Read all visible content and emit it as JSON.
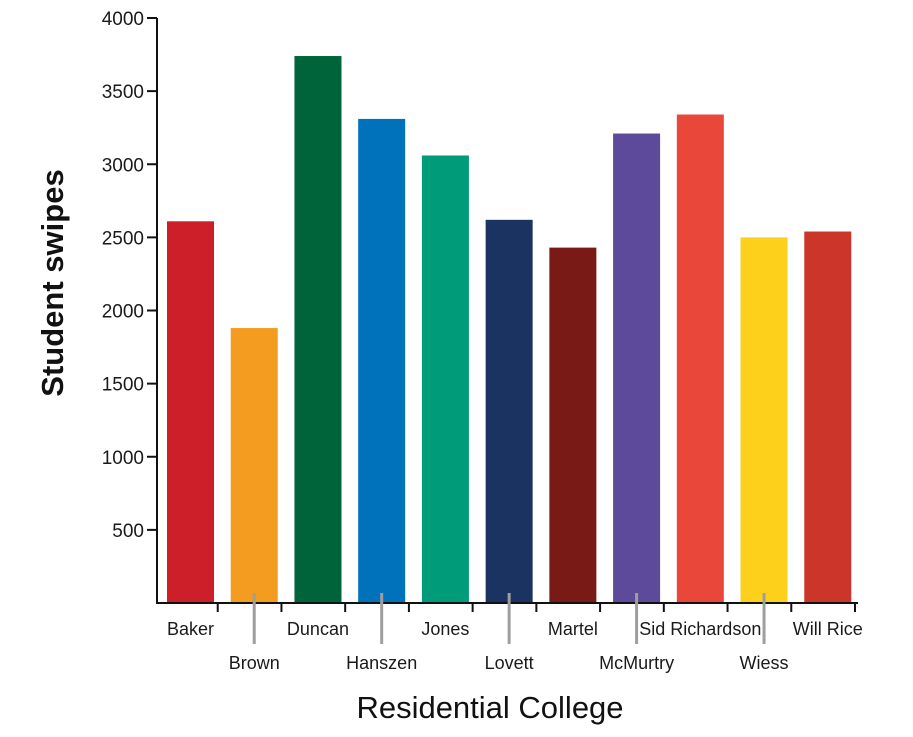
{
  "chart_data": {
    "type": "bar",
    "title": "",
    "xlabel": "Residential College",
    "ylabel": "Student swipes",
    "ylim": [
      0,
      4000
    ],
    "yticks": [
      500,
      1000,
      1500,
      2000,
      2500,
      3000,
      3500,
      4000
    ],
    "grid": false,
    "legend": "none",
    "categories": [
      "Baker",
      "Brown",
      "Duncan",
      "Hanszen",
      "Jones",
      "Lovett",
      "Martel",
      "McMurtry",
      "Sid Richardson",
      "Wiess",
      "Will Rice"
    ],
    "values": [
      2610,
      1880,
      3740,
      3310,
      3060,
      2620,
      2430,
      3210,
      3340,
      2500,
      2540
    ],
    "colors": [
      "#cc1f2a",
      "#f39c1f",
      "#00643a",
      "#0072bc",
      "#009c7a",
      "#1b3360",
      "#7a1a16",
      "#5e4a9a",
      "#e8473a",
      "#fdd01b",
      "#cc3529"
    ],
    "label_rows": [
      "upper",
      "lower",
      "upper",
      "lower",
      "upper",
      "lower",
      "upper",
      "lower",
      "upper",
      "lower",
      "upper"
    ]
  }
}
